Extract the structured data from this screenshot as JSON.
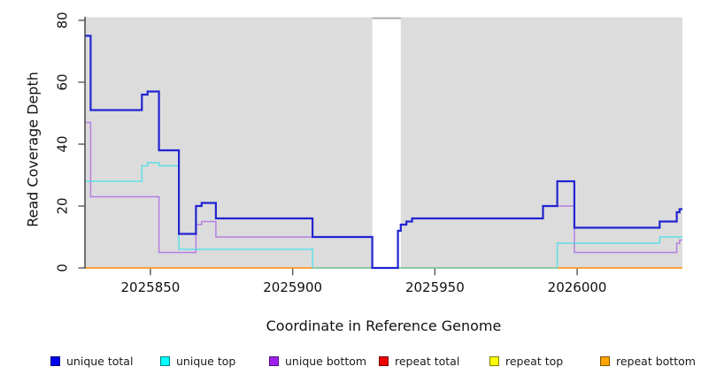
{
  "chart_data": {
    "type": "line",
    "subtype": "step-coverage-plot",
    "title": "",
    "xlabel": "Coordinate in Reference Genome",
    "ylabel": "Read Coverage Depth",
    "x_range": [
      2025827,
      2026037
    ],
    "y_range": [
      0,
      81
    ],
    "x_ticks": [
      2025850,
      2025900,
      2025950,
      2026000
    ],
    "y_ticks": [
      0,
      20,
      40,
      60,
      80
    ],
    "grid": "off",
    "legend_position": "bottom",
    "plot_bg_color": "#dcdcdc",
    "axis_color": "#2e2e2e",
    "tick_color": "#4a4a4a",
    "gap_region": {
      "start": 2025928,
      "end": 2025938,
      "fill": "#ffffff",
      "top_edge_color": "#9e9e9e"
    },
    "series": [
      {
        "id": "repeat_total",
        "name": "repeat total",
        "line_color": "#e00000",
        "legend_color": "#ee0000",
        "steps": [
          [
            2025827,
            0
          ]
        ]
      },
      {
        "id": "repeat_top",
        "name": "repeat top",
        "line_color": "#ffff00",
        "legend_color": "#ffff00",
        "steps": [
          [
            2025827,
            0
          ]
        ]
      },
      {
        "id": "repeat_bottom",
        "name": "repeat bottom",
        "line_color": "#ff9d2e",
        "legend_color": "#ffa500",
        "steps": [
          [
            2025827,
            0
          ]
        ]
      },
      {
        "id": "unique_bottom",
        "name": "unique bottom",
        "line_color": "#ad6fe3",
        "legend_color": "#a020f0",
        "steps": [
          [
            2025827,
            47
          ],
          [
            2025829,
            23
          ],
          [
            2025853,
            5
          ],
          [
            2025866,
            14
          ],
          [
            2025868,
            15
          ],
          [
            2025873,
            10
          ],
          [
            2025928,
            0
          ],
          [
            2025937,
            12
          ],
          [
            2025938,
            14
          ],
          [
            2025940,
            15
          ],
          [
            2025942,
            16
          ],
          [
            2025988,
            20
          ],
          [
            2025999,
            5
          ],
          [
            2026035,
            8
          ],
          [
            2026036,
            9
          ]
        ]
      },
      {
        "id": "unique_top",
        "name": "unique top",
        "line_color": "#3fdfe9",
        "legend_color": "#00ffff",
        "steps": [
          [
            2025827,
            28
          ],
          [
            2025847,
            33
          ],
          [
            2025849,
            34
          ],
          [
            2025853,
            33
          ],
          [
            2025860,
            6
          ],
          [
            2025907,
            0
          ],
          [
            2025993,
            8
          ],
          [
            2026029,
            10
          ]
        ]
      },
      {
        "id": "unique_total",
        "name": "unique total",
        "line_color": "#2323d2",
        "legend_color": "#0000ee",
        "steps": [
          [
            2025827,
            75
          ],
          [
            2025829,
            51
          ],
          [
            2025847,
            56
          ],
          [
            2025849,
            57
          ],
          [
            2025853,
            38
          ],
          [
            2025860,
            11
          ],
          [
            2025866,
            20
          ],
          [
            2025868,
            21
          ],
          [
            2025873,
            16
          ],
          [
            2025907,
            10
          ],
          [
            2025928,
            0
          ],
          [
            2025937,
            12
          ],
          [
            2025938,
            14
          ],
          [
            2025940,
            15
          ],
          [
            2025942,
            16
          ],
          [
            2025988,
            20
          ],
          [
            2025993,
            28
          ],
          [
            2025999,
            13
          ],
          [
            2026029,
            15
          ],
          [
            2026035,
            18
          ],
          [
            2026036,
            19
          ]
        ]
      }
    ],
    "legend_order": [
      "unique_total",
      "unique_top",
      "unique_bottom",
      "repeat_total",
      "repeat_top",
      "repeat_bottom"
    ]
  }
}
